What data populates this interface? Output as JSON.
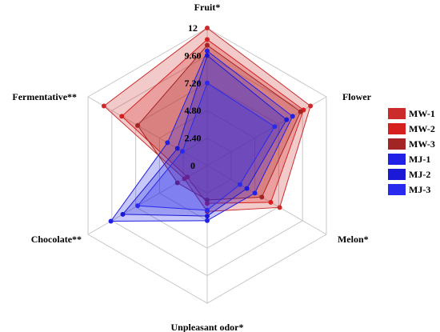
{
  "chart_data": {
    "type": "radar",
    "axes": [
      "Fruit*",
      "Flower",
      "Melon*",
      "Unpleasant odor*",
      "Chocolate**",
      "Fermentative**"
    ],
    "ticks": [
      "0",
      "2.40",
      "4.80",
      "7.20",
      "9.60",
      "12"
    ],
    "rlim": [
      0,
      12
    ],
    "grid": true,
    "legend_position": "right",
    "series": [
      {
        "name": "MW-1",
        "color": "#cc2b2b",
        "values": [
          12.0,
          10.4,
          7.3,
          4.0,
          2.3,
          10.4
        ]
      },
      {
        "name": "MW-2",
        "color": "#d62020",
        "values": [
          11.0,
          9.7,
          6.4,
          3.3,
          2.0,
          8.6
        ]
      },
      {
        "name": "MW-3",
        "color": "#a32424",
        "values": [
          10.5,
          9.4,
          5.5,
          3.0,
          3.0,
          7.0
        ]
      },
      {
        "name": "MJ-1",
        "color": "#2020e6",
        "values": [
          10.0,
          8.6,
          4.8,
          4.8,
          9.7,
          4.0
        ]
      },
      {
        "name": "MJ-2",
        "color": "#1a1ad6",
        "values": [
          9.6,
          8.0,
          4.0,
          4.4,
          8.5,
          3.0
        ]
      },
      {
        "name": "MJ-3",
        "color": "#2a2aee",
        "values": [
          7.2,
          6.8,
          3.3,
          3.9,
          7.0,
          2.5
        ]
      }
    ]
  }
}
